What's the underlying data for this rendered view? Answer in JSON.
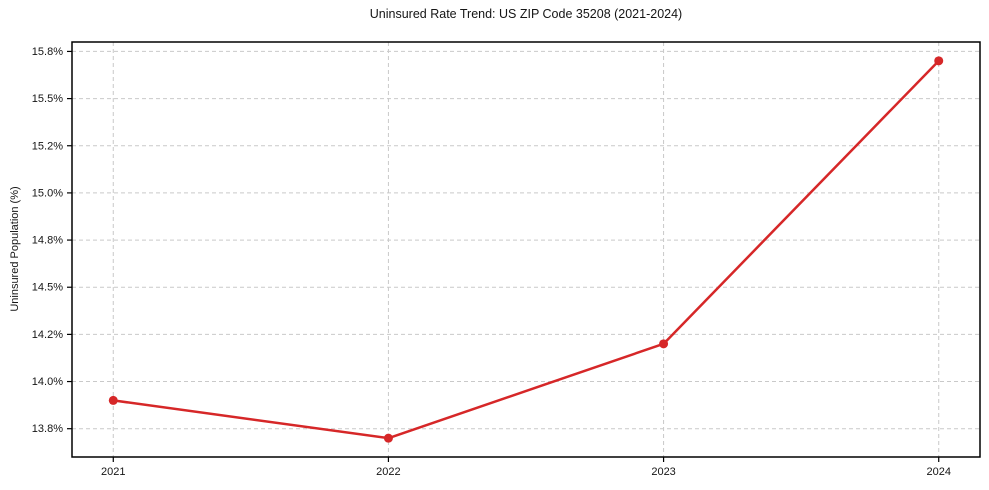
{
  "chart_data": {
    "type": "line",
    "title": "Uninsured Rate Trend: US ZIP Code 35208 (2021-2024)",
    "xlabel": "",
    "ylabel": "Uninsured Population (%)",
    "x": [
      2021,
      2022,
      2023,
      2024
    ],
    "values": [
      13.9,
      13.7,
      14.2,
      15.7
    ],
    "xticks": [
      {
        "value": 2021,
        "label": "2021"
      },
      {
        "value": 2022,
        "label": "2022"
      },
      {
        "value": 2023,
        "label": "2023"
      },
      {
        "value": 2024,
        "label": "2024"
      }
    ],
    "yticks": [
      {
        "value": 13.75,
        "label": "13.8%"
      },
      {
        "value": 14.0,
        "label": "14.0%"
      },
      {
        "value": 14.25,
        "label": "14.2%"
      },
      {
        "value": 14.5,
        "label": "14.5%"
      },
      {
        "value": 14.75,
        "label": "14.8%"
      },
      {
        "value": 15.0,
        "label": "15.0%"
      },
      {
        "value": 15.25,
        "label": "15.2%"
      },
      {
        "value": 15.5,
        "label": "15.5%"
      },
      {
        "value": 15.75,
        "label": "15.8%"
      }
    ],
    "xlim": [
      2020.85,
      2024.15
    ],
    "ylim": [
      13.6,
      15.8
    ],
    "grid": "dashed-both-axes",
    "legend": "none",
    "line_color": "#d62728",
    "marker": "circle",
    "grid_color": "#c9c9c9",
    "axis_color": "#000000",
    "background": "#ffffff"
  }
}
